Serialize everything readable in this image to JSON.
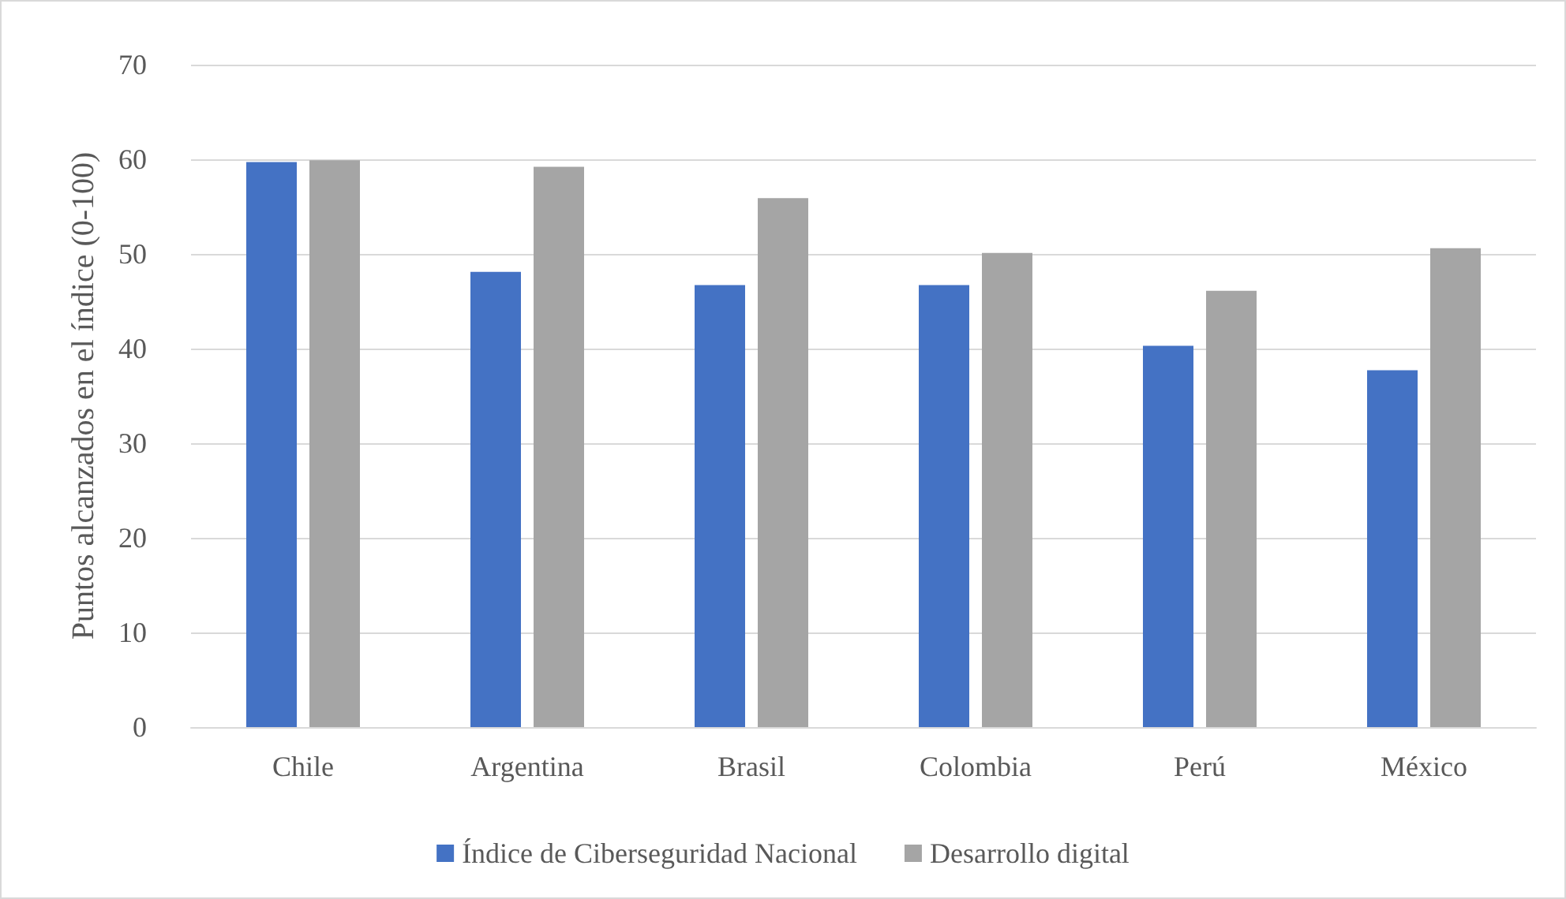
{
  "chart_data": {
    "type": "bar",
    "ylabel": "Puntos alcanzados en el índice (0-100)",
    "categories": [
      "Chile",
      "Argentina",
      "Brasil",
      "Colombia",
      "Perú",
      "México"
    ],
    "series": [
      {
        "name": "Índice de Ciberseguridad Nacional",
        "color": "#4472c4",
        "values": [
          59.7,
          48.1,
          46.7,
          46.7,
          40.3,
          37.7
        ]
      },
      {
        "name": "Desarrollo digital",
        "color": "#a5a5a5",
        "values": [
          59.9,
          59.2,
          55.9,
          50.1,
          46.1,
          50.6
        ]
      }
    ],
    "ylim": [
      0,
      70
    ],
    "yticks": [
      0,
      10,
      20,
      30,
      40,
      50,
      60,
      70
    ],
    "grid": "y",
    "legend": "bottom"
  }
}
